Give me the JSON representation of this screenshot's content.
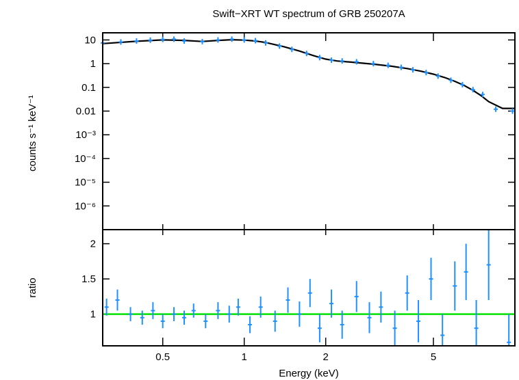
{
  "chart_data": [
    {
      "panel": "spectrum",
      "type": "scatter",
      "title": "Swift−XRT WT spectrum of GRB 250207A",
      "ylabel": "counts s⁻¹ keV⁻¹",
      "x_scale": "log",
      "y_scale": "log",
      "xlim": [
        0.3,
        10.0
      ],
      "ylim": [
        1e-07,
        20
      ],
      "y_ticks": [
        {
          "v": 10,
          "label": "10"
        },
        {
          "v": 1,
          "label": "1"
        },
        {
          "v": 0.1,
          "label": "0.1"
        },
        {
          "v": 0.01,
          "label": "0.01"
        },
        {
          "v": 0.001,
          "label": "10⁻³"
        },
        {
          "v": 0.0001,
          "label": "10⁻⁴"
        },
        {
          "v": 1e-05,
          "label": "10⁻⁵"
        },
        {
          "v": 1e-06,
          "label": "10⁻⁶"
        }
      ],
      "series": [
        {
          "role": "data",
          "color": "#1e90ff",
          "x": [
            0.3,
            0.35,
            0.4,
            0.45,
            0.5,
            0.55,
            0.6,
            0.7,
            0.8,
            0.9,
            1.0,
            1.1,
            1.2,
            1.35,
            1.5,
            1.7,
            1.9,
            2.1,
            2.3,
            2.6,
            3.0,
            3.4,
            3.8,
            4.2,
            4.7,
            5.2,
            5.8,
            6.4,
            7.0,
            7.6,
            8.5,
            9.8
          ],
          "y": [
            7.5,
            8.2,
            9.0,
            9.8,
            10.5,
            10.8,
            9.0,
            8.5,
            10.0,
            10.8,
            10.0,
            9.3,
            7.5,
            5.5,
            4.0,
            2.7,
            1.8,
            1.4,
            1.3,
            1.2,
            1.0,
            0.85,
            0.7,
            0.55,
            0.42,
            0.3,
            0.2,
            0.13,
            0.08,
            0.05,
            0.012,
            0.01
          ]
        },
        {
          "role": "model",
          "color": "#000000",
          "x": [
            0.3,
            0.4,
            0.5,
            0.6,
            0.7,
            0.8,
            0.9,
            1.0,
            1.1,
            1.2,
            1.4,
            1.6,
            1.8,
            2.0,
            2.2,
            2.5,
            3.0,
            3.5,
            4.0,
            4.5,
            5.0,
            5.5,
            6.0,
            6.5,
            7.0,
            7.5,
            8.0,
            9.0,
            10.0
          ],
          "y": [
            7.0,
            8.8,
            10.0,
            9.6,
            8.6,
            9.6,
            10.2,
            9.8,
            9.0,
            7.8,
            5.2,
            3.4,
            2.2,
            1.55,
            1.3,
            1.15,
            0.95,
            0.78,
            0.62,
            0.48,
            0.36,
            0.26,
            0.18,
            0.12,
            0.075,
            0.045,
            0.025,
            0.013,
            0.013
          ]
        }
      ]
    },
    {
      "panel": "ratio",
      "type": "scatter",
      "xlabel": "Energy (keV)",
      "ylabel": "ratio",
      "x_scale": "log",
      "y_scale": "linear",
      "xlim": [
        0.3,
        10.0
      ],
      "ylim": [
        0.55,
        2.2
      ],
      "y_ticks": [
        {
          "v": 1,
          "label": "1"
        },
        {
          "v": 1.5,
          "label": "1.5"
        },
        {
          "v": 2,
          "label": "2"
        }
      ],
      "x_ticks": [
        {
          "v": 0.5,
          "label": "0.5"
        },
        {
          "v": 1,
          "label": "1"
        },
        {
          "v": 2,
          "label": "2"
        },
        {
          "v": 5,
          "label": "5"
        }
      ],
      "reference_line": {
        "y": 1,
        "color": "#00e000"
      },
      "series": [
        {
          "role": "data",
          "color": "#1e90ff",
          "x": [
            0.31,
            0.34,
            0.38,
            0.42,
            0.46,
            0.5,
            0.55,
            0.6,
            0.65,
            0.72,
            0.8,
            0.88,
            0.95,
            1.05,
            1.15,
            1.3,
            1.45,
            1.6,
            1.75,
            1.9,
            2.1,
            2.3,
            2.6,
            2.9,
            3.2,
            3.6,
            4.0,
            4.4,
            4.9,
            5.4,
            6.0,
            6.6,
            7.2,
            8.0,
            9.5
          ],
          "y": [
            1.1,
            1.2,
            1.0,
            0.95,
            1.05,
            0.9,
            1.0,
            0.95,
            1.05,
            0.9,
            1.05,
            1.0,
            1.1,
            0.85,
            1.1,
            0.9,
            1.2,
            1.0,
            1.3,
            0.8,
            1.15,
            0.85,
            1.25,
            0.95,
            1.1,
            0.8,
            1.3,
            0.9,
            1.5,
            0.7,
            1.4,
            1.6,
            0.8,
            1.7,
            0.6
          ],
          "err": [
            0.12,
            0.15,
            0.1,
            0.1,
            0.12,
            0.1,
            0.1,
            0.1,
            0.1,
            0.1,
            0.12,
            0.12,
            0.12,
            0.12,
            0.15,
            0.15,
            0.18,
            0.18,
            0.2,
            0.2,
            0.2,
            0.2,
            0.22,
            0.22,
            0.22,
            0.25,
            0.25,
            0.3,
            0.3,
            0.3,
            0.35,
            0.4,
            0.4,
            0.5,
            0.4
          ]
        }
      ]
    }
  ]
}
